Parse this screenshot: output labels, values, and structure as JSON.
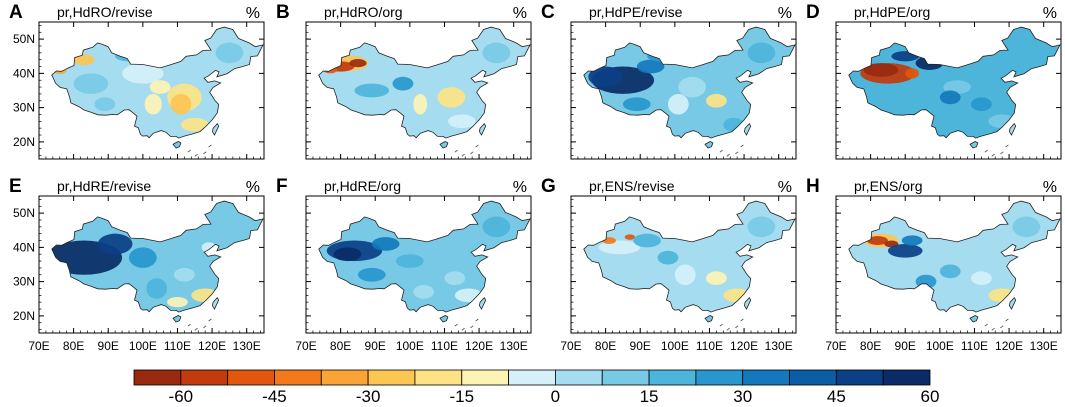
{
  "figure": {
    "unit": "%",
    "lat_ticks": [
      "50N",
      "40N",
      "30N",
      "20N"
    ],
    "lon_ticks": [
      "70E",
      "80E",
      "90E",
      "100E",
      "110E",
      "120E",
      "130E"
    ],
    "panels": [
      {
        "letter": "A",
        "title": "pr,HdRO/revise",
        "scheme": "mixed_light"
      },
      {
        "letter": "B",
        "title": "pr,HdRO/org",
        "scheme": "mixed_neg_west"
      },
      {
        "letter": "C",
        "title": "pr,HdPE/revise",
        "scheme": "blue_dark_west"
      },
      {
        "letter": "D",
        "title": "pr,HdPE/org",
        "scheme": "red_west"
      },
      {
        "letter": "E",
        "title": "pr,HdRE/revise",
        "scheme": "blue_very_dark_west"
      },
      {
        "letter": "F",
        "title": "pr,HdRE/org",
        "scheme": "blue_dark_west2"
      },
      {
        "letter": "G",
        "title": "pr,ENS/revise",
        "scheme": "light_blue"
      },
      {
        "letter": "H",
        "title": "pr,ENS/org",
        "scheme": "light_red_west"
      }
    ]
  },
  "colorbar": {
    "colors": [
      "#992a10",
      "#c13b0e",
      "#e0570d",
      "#f27a1c",
      "#f9a434",
      "#fcc653",
      "#fde385",
      "#fdf3b5",
      "#d5f0f8",
      "#a5dcef",
      "#78c9e6",
      "#4db4da",
      "#2797cd",
      "#1479bc",
      "#0c5ca6",
      "#0b3f86",
      "#0a2b66"
    ],
    "labels": [
      "-60",
      "-45",
      "-30",
      "-15",
      "0",
      "15",
      "30",
      "45",
      "60"
    ]
  }
}
